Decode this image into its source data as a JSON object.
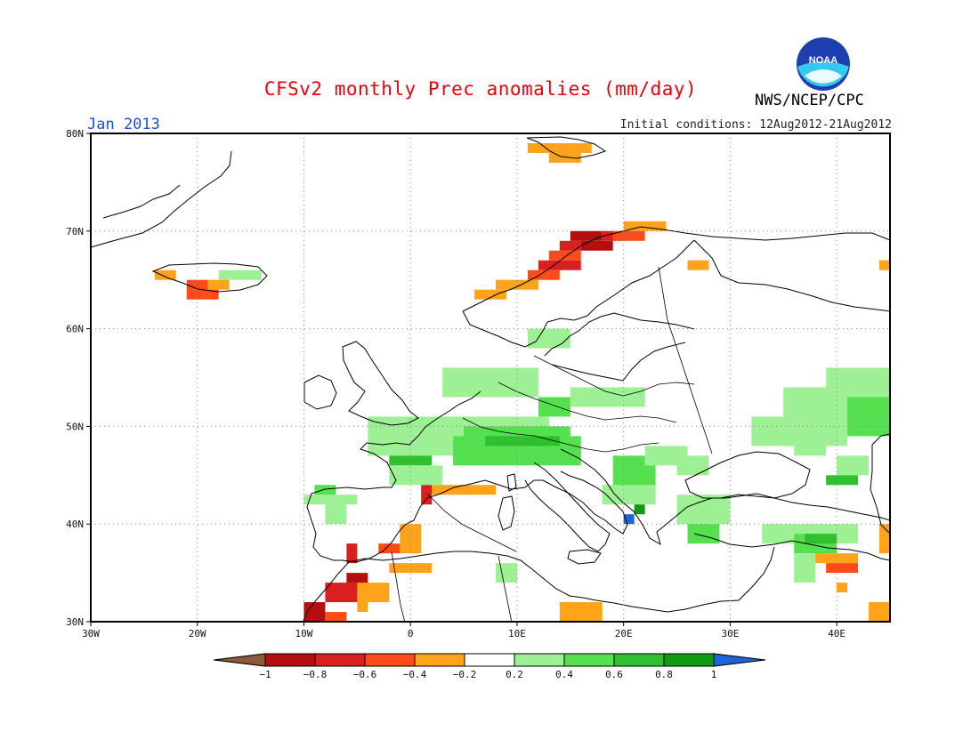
{
  "header": {
    "title": "CFSv2 monthly Prec anomalies (mm/day)",
    "month": "Jan 2013",
    "initial_conditions": "Initial conditions: 12Aug2012-21Aug2012",
    "agency": "NWS/NCEP/CPC",
    "logo_text": "NOAA"
  },
  "map": {
    "lon_range": [
      -30,
      45
    ],
    "lat_range": [
      30,
      80
    ],
    "lon_ticks": [
      {
        "value": -30,
        "label": "30W"
      },
      {
        "value": -20,
        "label": "20W"
      },
      {
        "value": -10,
        "label": "10W"
      },
      {
        "value": 0,
        "label": "0"
      },
      {
        "value": 10,
        "label": "10E"
      },
      {
        "value": 20,
        "label": "20E"
      },
      {
        "value": 30,
        "label": "30E"
      },
      {
        "value": 40,
        "label": "40E"
      }
    ],
    "lat_ticks": [
      {
        "value": 30,
        "label": "30N"
      },
      {
        "value": 40,
        "label": "40N"
      },
      {
        "value": 50,
        "label": "50N"
      },
      {
        "value": 60,
        "label": "60N"
      },
      {
        "value": 70,
        "label": "70N"
      },
      {
        "value": 80,
        "label": "80N"
      }
    ],
    "grid": true
  },
  "legend": {
    "levels": [
      "-1",
      "-0.8",
      "-0.6",
      "-0.4",
      "-0.2",
      "0.2",
      "0.4",
      "0.6",
      "0.8",
      "1"
    ],
    "colors": [
      "#8b5a3c",
      "#b40f0f",
      "#d82020",
      "#ff4a1a",
      "#ffa31a",
      "#ffffff",
      "#9ef094",
      "#55e050",
      "#2fbf2f",
      "#129a12",
      "#1f63d6"
    ]
  },
  "anomaly_cells": [
    {
      "lon": 15,
      "lat": 69,
      "w": 3,
      "h": 1,
      "level": -0.9
    },
    {
      "lon": 16,
      "lat": 68,
      "w": 3,
      "h": 1,
      "level": -0.9
    },
    {
      "lon": 14,
      "lat": 68,
      "w": 2,
      "h": 1,
      "level": -0.7
    },
    {
      "lon": 18,
      "lat": 69,
      "w": 2,
      "h": 1,
      "level": -0.7
    },
    {
      "lon": 20,
      "lat": 70,
      "w": 4,
      "h": 1,
      "level": -0.3
    },
    {
      "lon": 19,
      "lat": 69,
      "w": 3,
      "h": 1,
      "level": -0.5
    },
    {
      "lon": 12,
      "lat": 66,
      "w": 4,
      "h": 1,
      "level": -0.7
    },
    {
      "lon": 13,
      "lat": 67,
      "w": 3,
      "h": 1,
      "level": -0.5
    },
    {
      "lon": 11,
      "lat": 65,
      "w": 3,
      "h": 1,
      "level": -0.5
    },
    {
      "lon": 8,
      "lat": 64,
      "w": 4,
      "h": 1,
      "level": -0.3
    },
    {
      "lon": 6,
      "lat": 63,
      "w": 3,
      "h": 1,
      "level": -0.3
    },
    {
      "lon": 26,
      "lat": 66,
      "w": 2,
      "h": 1,
      "level": -0.3
    },
    {
      "lon": 44,
      "lat": 66,
      "w": 1,
      "h": 1,
      "level": -0.3
    },
    {
      "lon": 11,
      "lat": 78,
      "w": 6,
      "h": 1,
      "level": -0.3
    },
    {
      "lon": 13,
      "lat": 77,
      "w": 3,
      "h": 1,
      "level": -0.3
    },
    {
      "lon": -24,
      "lat": 65,
      "w": 2,
      "h": 1,
      "level": -0.3
    },
    {
      "lon": -21,
      "lat": 64,
      "w": 2,
      "h": 1,
      "level": -0.5
    },
    {
      "lon": -19,
      "lat": 64,
      "w": 2,
      "h": 1,
      "level": -0.3
    },
    {
      "lon": -21,
      "lat": 63,
      "w": 3,
      "h": 1,
      "level": -0.5
    },
    {
      "lon": -18,
      "lat": 65,
      "w": 4,
      "h": 1,
      "level": 0.3
    },
    {
      "lon": 3,
      "lat": 53,
      "w": 9,
      "h": 3,
      "level": 0.3
    },
    {
      "lon": -4,
      "lat": 47,
      "w": 17,
      "h": 4,
      "level": 0.3
    },
    {
      "lon": 4,
      "lat": 46,
      "w": 12,
      "h": 3,
      "level": 0.5
    },
    {
      "lon": 5,
      "lat": 48,
      "w": 10,
      "h": 2,
      "level": 0.5
    },
    {
      "lon": 7,
      "lat": 48,
      "w": 7,
      "h": 1,
      "level": 0.7
    },
    {
      "lon": -2,
      "lat": 46,
      "w": 4,
      "h": 1,
      "level": 0.7
    },
    {
      "lon": 1,
      "lat": 43,
      "w": 4,
      "h": 1,
      "level": 0.3
    },
    {
      "lon": -2,
      "lat": 44,
      "w": 5,
      "h": 2,
      "level": 0.3
    },
    {
      "lon": 15,
      "lat": 52,
      "w": 7,
      "h": 2,
      "level": 0.3
    },
    {
      "lon": 12,
      "lat": 51,
      "w": 3,
      "h": 2,
      "level": 0.4
    },
    {
      "lon": 11,
      "lat": 58,
      "w": 4,
      "h": 2,
      "level": 0.3
    },
    {
      "lon": 19,
      "lat": 43,
      "w": 4,
      "h": 4,
      "level": 0.5
    },
    {
      "lon": 18,
      "lat": 42,
      "w": 5,
      "h": 2,
      "level": 0.3
    },
    {
      "lon": 20,
      "lat": 40,
      "w": 1,
      "h": 1,
      "level": 1.0
    },
    {
      "lon": 21,
      "lat": 41,
      "w": 1,
      "h": 1,
      "level": 0.9
    },
    {
      "lon": 22,
      "lat": 46,
      "w": 4,
      "h": 2,
      "level": 0.3
    },
    {
      "lon": 25,
      "lat": 45,
      "w": 3,
      "h": 2,
      "level": 0.3
    },
    {
      "lon": 25,
      "lat": 40,
      "w": 5,
      "h": 3,
      "level": 0.3
    },
    {
      "lon": 26,
      "lat": 38,
      "w": 3,
      "h": 2,
      "level": 0.5
    },
    {
      "lon": 35,
      "lat": 48,
      "w": 6,
      "h": 6,
      "level": 0.3
    },
    {
      "lon": 39,
      "lat": 52,
      "w": 6,
      "h": 4,
      "level": 0.3
    },
    {
      "lon": 41,
      "lat": 49,
      "w": 4,
      "h": 4,
      "level": 0.5
    },
    {
      "lon": 32,
      "lat": 48,
      "w": 4,
      "h": 3,
      "level": 0.3
    },
    {
      "lon": 36,
      "lat": 47,
      "w": 3,
      "h": 3,
      "level": 0.3
    },
    {
      "lon": 40,
      "lat": 45,
      "w": 3,
      "h": 2,
      "level": 0.3
    },
    {
      "lon": 39,
      "lat": 44,
      "w": 3,
      "h": 1,
      "level": 0.7
    },
    {
      "lon": 33,
      "lat": 38,
      "w": 9,
      "h": 2,
      "level": 0.3
    },
    {
      "lon": 36,
      "lat": 37,
      "w": 4,
      "h": 2,
      "level": 0.5
    },
    {
      "lon": 37,
      "lat": 38,
      "w": 3,
      "h": 1,
      "level": 0.7
    },
    {
      "lon": 36,
      "lat": 34,
      "w": 2,
      "h": 3,
      "level": 0.3
    },
    {
      "lon": 8,
      "lat": 34,
      "w": 2,
      "h": 2,
      "level": 0.3
    },
    {
      "lon": -8,
      "lat": 40,
      "w": 2,
      "h": 2,
      "level": 0.3
    },
    {
      "lon": -10,
      "lat": 42,
      "w": 5,
      "h": 1,
      "level": 0.3
    },
    {
      "lon": -9,
      "lat": 43,
      "w": 2,
      "h": 1,
      "level": 0.4
    },
    {
      "lon": 2,
      "lat": 43,
      "w": 6,
      "h": 1,
      "level": -0.3
    },
    {
      "lon": 1,
      "lat": 42,
      "w": 1,
      "h": 2,
      "level": -0.8
    },
    {
      "lon": -1,
      "lat": 37,
      "w": 2,
      "h": 3,
      "level": -0.3
    },
    {
      "lon": -3,
      "lat": 37,
      "w": 2,
      "h": 1,
      "level": -0.5
    },
    {
      "lon": -2,
      "lat": 35,
      "w": 4,
      "h": 1,
      "level": -0.3
    },
    {
      "lon": -6,
      "lat": 36,
      "w": 1,
      "h": 2,
      "level": -0.8
    },
    {
      "lon": -6,
      "lat": 33,
      "w": 2,
      "h": 2,
      "level": -0.9
    },
    {
      "lon": -8,
      "lat": 32,
      "w": 3,
      "h": 2,
      "level": -0.8
    },
    {
      "lon": -10,
      "lat": 30,
      "w": 2,
      "h": 2,
      "level": -0.9
    },
    {
      "lon": -8,
      "lat": 30,
      "w": 2,
      "h": 1,
      "level": -0.5
    },
    {
      "lon": -5,
      "lat": 31,
      "w": 1,
      "h": 3,
      "level": -0.3
    },
    {
      "lon": -4,
      "lat": 32,
      "w": 2,
      "h": 2,
      "level": -0.3
    },
    {
      "lon": 14,
      "lat": 30,
      "w": 4,
      "h": 2,
      "level": -0.3
    },
    {
      "lon": 39,
      "lat": 35,
      "w": 3,
      "h": 1,
      "level": -0.5
    },
    {
      "lon": 38,
      "lat": 36,
      "w": 4,
      "h": 1,
      "level": -0.3
    },
    {
      "lon": 43,
      "lat": 30,
      "w": 2,
      "h": 2,
      "level": -0.3
    },
    {
      "lon": 44,
      "lat": 37,
      "w": 1,
      "h": 3,
      "level": -0.3
    },
    {
      "lon": 40,
      "lat": 33,
      "w": 1,
      "h": 1,
      "level": -0.3
    }
  ]
}
